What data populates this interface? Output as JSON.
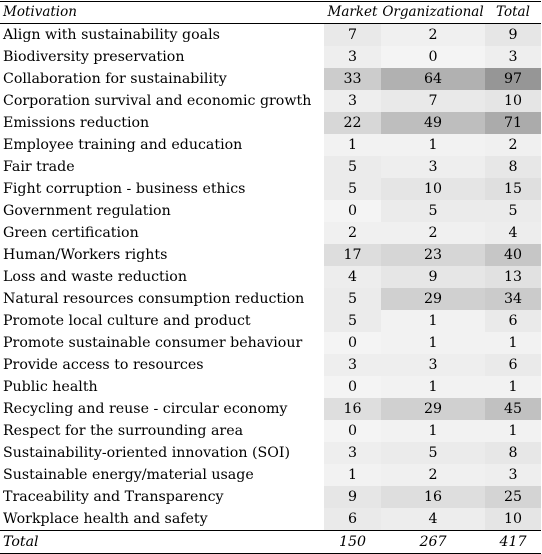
{
  "table": {
    "columns": [
      "Motivation",
      "Market",
      "Organizational",
      "Total"
    ],
    "rows": [
      {
        "label": "Align with sustainability goals",
        "market": 7,
        "organizational": 2,
        "total": 9
      },
      {
        "label": "Biodiversity preservation",
        "market": 3,
        "organizational": 0,
        "total": 3
      },
      {
        "label": "Collaboration for sustainability",
        "market": 33,
        "organizational": 64,
        "total": 97
      },
      {
        "label": "Corporation survival and economic growth",
        "market": 3,
        "organizational": 7,
        "total": 10
      },
      {
        "label": "Emissions reduction",
        "market": 22,
        "organizational": 49,
        "total": 71
      },
      {
        "label": "Employee training and education",
        "market": 1,
        "organizational": 1,
        "total": 2
      },
      {
        "label": "Fair trade",
        "market": 5,
        "organizational": 3,
        "total": 8
      },
      {
        "label": "Fight corruption - business ethics",
        "market": 5,
        "organizational": 10,
        "total": 15
      },
      {
        "label": "Government regulation",
        "market": 0,
        "organizational": 5,
        "total": 5
      },
      {
        "label": "Green certification",
        "market": 2,
        "organizational": 2,
        "total": 4
      },
      {
        "label": "Human/Workers rights",
        "market": 17,
        "organizational": 23,
        "total": 40
      },
      {
        "label": "Loss and waste reduction",
        "market": 4,
        "organizational": 9,
        "total": 13
      },
      {
        "label": "Natural resources consumption reduction",
        "market": 5,
        "organizational": 29,
        "total": 34
      },
      {
        "label": "Promote local culture and product",
        "market": 5,
        "organizational": 1,
        "total": 6
      },
      {
        "label": "Promote sustainable consumer behaviour",
        "market": 0,
        "organizational": 1,
        "total": 1
      },
      {
        "label": "Provide access to resources",
        "market": 3,
        "organizational": 3,
        "total": 6
      },
      {
        "label": "Public health",
        "market": 0,
        "organizational": 1,
        "total": 1
      },
      {
        "label": "Recycling and reuse - circular economy",
        "market": 16,
        "organizational": 29,
        "total": 45
      },
      {
        "label": "Respect for the surrounding area",
        "market": 0,
        "organizational": 1,
        "total": 1
      },
      {
        "label": "Sustainability-oriented innovation (SOI)",
        "market": 3,
        "organizational": 5,
        "total": 8
      },
      {
        "label": "Sustainable energy/material usage",
        "market": 1,
        "organizational": 2,
        "total": 3
      },
      {
        "label": "Traceability and Transparency",
        "market": 9,
        "organizational": 16,
        "total": 25
      },
      {
        "label": "Workplace health and safety",
        "market": 6,
        "organizational": 4,
        "total": 10
      }
    ],
    "total_row": {
      "label": "Total",
      "market": 150,
      "organizational": 267,
      "total": 417
    }
  }
}
